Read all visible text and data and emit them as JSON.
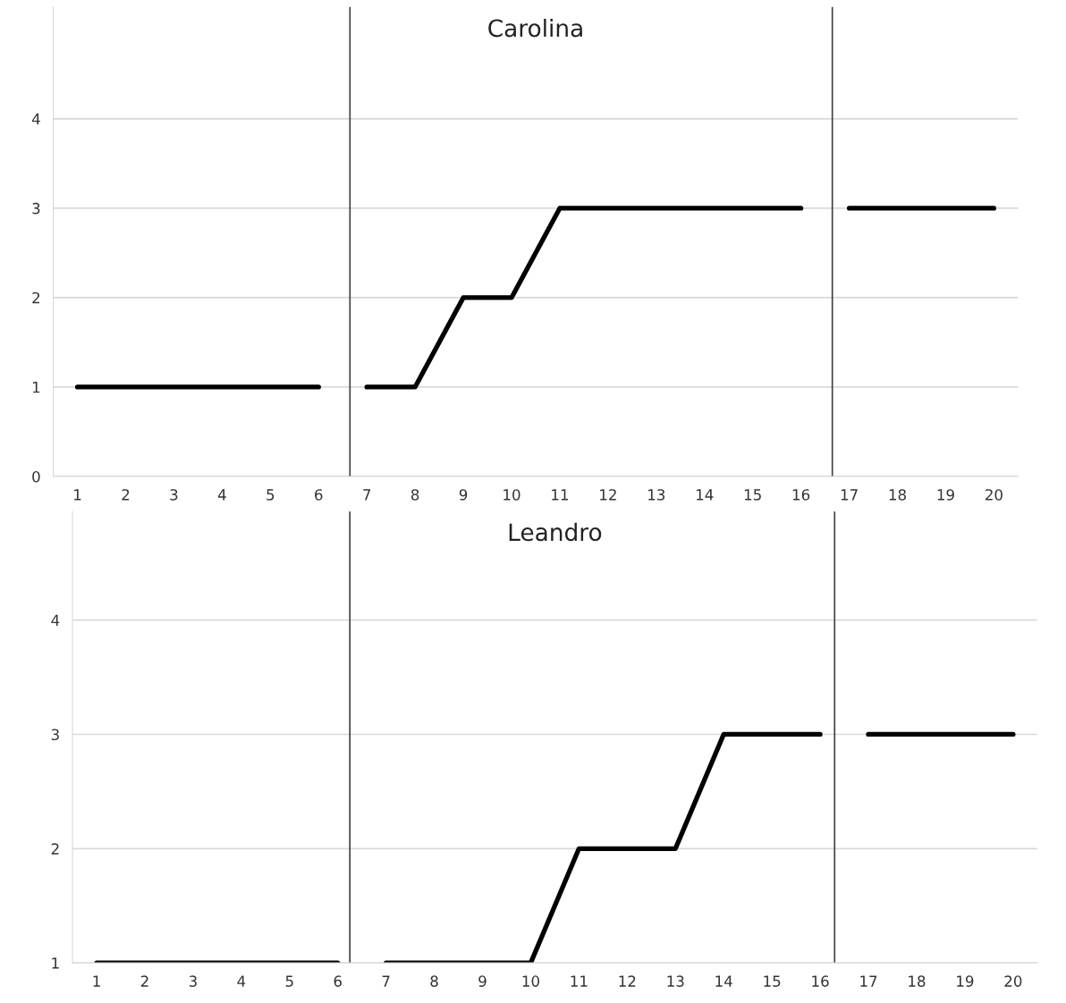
{
  "chart_data": [
    {
      "type": "line",
      "title": "Carolina",
      "xlim": [
        0.5,
        20.5
      ],
      "xticks": [
        1,
        2,
        3,
        4,
        5,
        6,
        7,
        8,
        9,
        10,
        11,
        12,
        13,
        14,
        15,
        16,
        17,
        18,
        19,
        20
      ],
      "ylim": [
        0,
        5.25
      ],
      "yticks": [
        0,
        1,
        2,
        3,
        4
      ],
      "grid": "y",
      "ref_lines": [
        {
          "axis": "x",
          "value": 6.65,
          "color": "#404040"
        },
        {
          "axis": "x",
          "value": 16.65,
          "color": "#404040"
        }
      ],
      "series": [
        {
          "color": "#000000",
          "x": [
            1,
            2,
            3,
            4,
            5,
            6
          ],
          "values": [
            1,
            1,
            1,
            1,
            1,
            1
          ]
        },
        {
          "color": "#000000",
          "x": [
            7,
            8,
            9,
            10,
            11,
            12,
            13,
            14,
            15,
            16
          ],
          "values": [
            1,
            1,
            2,
            2,
            3,
            3,
            3,
            3,
            3,
            3
          ]
        },
        {
          "color": "#000000",
          "x": [
            17,
            18,
            19,
            20
          ],
          "values": [
            3,
            3,
            3,
            3
          ]
        }
      ]
    },
    {
      "type": "line",
      "title": "Leandro",
      "xlim": [
        0.5,
        20.5
      ],
      "xticks": [
        1,
        2,
        3,
        4,
        5,
        6,
        7,
        8,
        9,
        10,
        11,
        12,
        13,
        14,
        15,
        16,
        17,
        18,
        19,
        20
      ],
      "ylim": [
        1,
        4.95
      ],
      "yticks": [
        1,
        2,
        3,
        4
      ],
      "grid": "y",
      "ref_lines": [
        {
          "axis": "x",
          "value": 6.25,
          "color": "#404040"
        },
        {
          "axis": "x",
          "value": 16.3,
          "color": "#404040"
        }
      ],
      "series": [
        {
          "color": "#000000",
          "x": [
            1,
            2,
            3,
            4,
            5,
            6
          ],
          "values": [
            1,
            1,
            1,
            1,
            1,
            1
          ]
        },
        {
          "color": "#000000",
          "x": [
            7,
            8,
            9,
            10,
            11,
            12,
            13,
            14,
            15,
            16
          ],
          "values": [
            1,
            1,
            1,
            1,
            2,
            2,
            2,
            3,
            3,
            3
          ]
        },
        {
          "color": "#000000",
          "x": [
            17,
            18,
            19,
            20
          ],
          "values": [
            3,
            3,
            3,
            3
          ]
        }
      ]
    }
  ]
}
